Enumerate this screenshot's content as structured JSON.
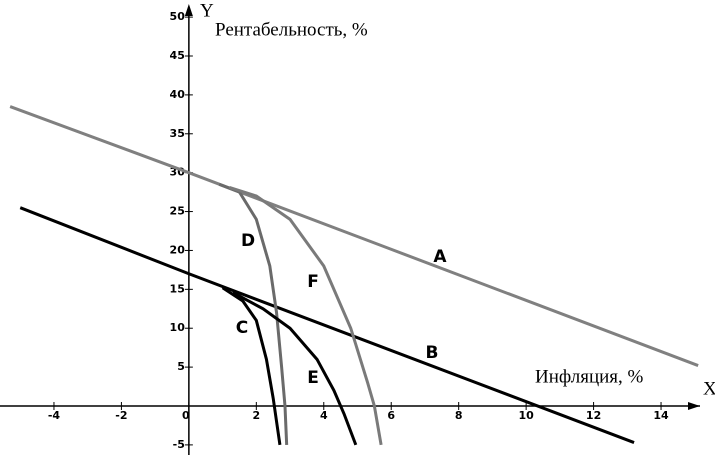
{
  "chart_data": {
    "type": "line",
    "y_label": "Рентабельность, %",
    "x_label": "Инфляция, %",
    "y_axis_name": "Y",
    "x_axis_name": "X",
    "xlim": [
      -5.6,
      15.6
    ],
    "ylim": [
      -6.3,
      52.2
    ],
    "xticks": [
      -4,
      -2,
      0,
      2,
      4,
      6,
      8,
      10,
      12,
      14
    ],
    "yticks": [
      -5,
      5,
      10,
      15,
      20,
      25,
      30,
      35,
      40,
      45,
      50
    ],
    "series": [
      {
        "name": "A",
        "color": "#808080",
        "x": [
          -5.3,
          0,
          15.1
        ],
        "values": [
          38.5,
          30,
          5.2
        ]
      },
      {
        "name": "B",
        "color": "#000000",
        "x": [
          -5,
          0,
          13.2
        ],
        "values": [
          25.5,
          17,
          -4.7
        ]
      },
      {
        "name": "C",
        "color": "#000000",
        "x": [
          1,
          1.6,
          2,
          2.3,
          2.5,
          2.6,
          2.7
        ],
        "values": [
          15.2,
          13.5,
          11,
          6,
          1,
          -2,
          -5
        ]
      },
      {
        "name": "D",
        "color": "#6a6a6a",
        "x": [
          0.9,
          1.5,
          2,
          2.4,
          2.6,
          2.75,
          2.85,
          2.9
        ],
        "values": [
          28.5,
          27.5,
          24,
          18,
          12,
          5,
          0,
          -5
        ]
      },
      {
        "name": "E",
        "color": "#000000",
        "x": [
          1.3,
          2.2,
          3,
          3.8,
          4.3,
          4.6,
          4.95
        ],
        "values": [
          14.6,
          12.5,
          10,
          6,
          2,
          -1,
          -5
        ]
      },
      {
        "name": "F",
        "color": "#7a7a7a",
        "x": [
          1.2,
          2,
          3,
          4,
          4.8,
          5.3,
          5.5,
          5.7
        ],
        "values": [
          28.1,
          27,
          24,
          18,
          10,
          3,
          0,
          -5
        ]
      }
    ]
  }
}
